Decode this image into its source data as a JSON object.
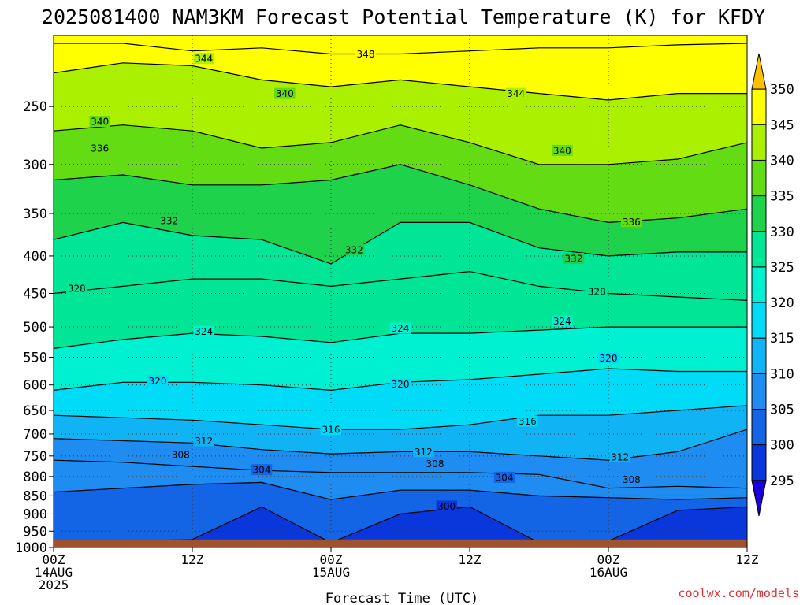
{
  "chart_data": {
    "type": "contour",
    "title": "2025081400 NAM3KM Forecast Potential Temperature (K) for KFDY",
    "xlabel": "Forecast Time (UTC)",
    "ylabel": "",
    "x_unit": "forecast hour",
    "xlim": [
      0,
      60
    ],
    "ylim": [
      1000,
      200
    ],
    "y_scale": "log-pressure",
    "grid": true,
    "x_ticks": [
      {
        "hour": 0,
        "lines": [
          "00Z",
          "14AUG",
          "2025"
        ]
      },
      {
        "hour": 12,
        "lines": [
          "12Z"
        ]
      },
      {
        "hour": 24,
        "lines": [
          "00Z",
          "15AUG"
        ]
      },
      {
        "hour": 36,
        "lines": [
          "12Z"
        ]
      },
      {
        "hour": 48,
        "lines": [
          "00Z",
          "16AUG"
        ]
      },
      {
        "hour": 60,
        "lines": [
          "12Z"
        ]
      }
    ],
    "y_ticks": [
      250,
      300,
      350,
      400,
      450,
      500,
      550,
      600,
      650,
      700,
      750,
      800,
      850,
      900,
      950,
      1000
    ],
    "surface_pressure": 975,
    "surface_color": "#a0522d",
    "colorbar": {
      "levels": [
        295,
        300,
        305,
        310,
        315,
        320,
        325,
        330,
        335,
        340,
        345,
        350
      ],
      "labels": [
        "295",
        "300",
        "305",
        "310",
        "315",
        "320",
        "325",
        "330",
        "335",
        "340",
        "345",
        "350"
      ],
      "colors": [
        "#1a00d8",
        "#0a37dc",
        "#1464e6",
        "#1e8cf0",
        "#10b4f4",
        "#00dcf8",
        "#00f0d2",
        "#00e696",
        "#1ed24b",
        "#64dc14",
        "#aaf000",
        "#ffff00",
        "#ffc000"
      ],
      "position": "right"
    },
    "contour_levels": [
      300,
      304,
      308,
      312,
      316,
      320,
      324,
      328,
      332,
      336,
      340,
      344,
      348
    ],
    "hours": [
      0,
      6,
      12,
      18,
      24,
      30,
      36,
      42,
      48,
      54,
      60
    ],
    "isentropes": [
      {
        "theta": 300,
        "pressure": [
          985,
          980,
          975,
          880,
          985,
          900,
          880,
          985,
          980,
          890,
          880
        ]
      },
      {
        "theta": 304,
        "pressure": [
          840,
          830,
          820,
          815,
          860,
          835,
          835,
          850,
          855,
          860,
          855
        ]
      },
      {
        "theta": 308,
        "pressure": [
          760,
          765,
          775,
          785,
          790,
          790,
          790,
          795,
          830,
          825,
          830
        ]
      },
      {
        "theta": 312,
        "pressure": [
          710,
          715,
          720,
          735,
          745,
          740,
          740,
          750,
          760,
          740,
          690
        ]
      },
      {
        "theta": 316,
        "pressure": [
          660,
          665,
          670,
          680,
          690,
          690,
          680,
          660,
          660,
          650,
          640
        ]
      },
      {
        "theta": 320,
        "pressure": [
          610,
          595,
          595,
          600,
          610,
          595,
          590,
          580,
          570,
          575,
          575
        ]
      },
      {
        "theta": 324,
        "pressure": [
          535,
          520,
          510,
          515,
          525,
          510,
          510,
          505,
          500,
          500,
          500
        ]
      },
      {
        "theta": 328,
        "pressure": [
          450,
          440,
          430,
          430,
          440,
          430,
          420,
          440,
          450,
          455,
          460
        ]
      },
      {
        "theta": 332,
        "pressure": [
          380,
          360,
          375,
          380,
          410,
          360,
          360,
          390,
          400,
          395,
          395
        ]
      },
      {
        "theta": 336,
        "pressure": [
          315,
          310,
          320,
          320,
          315,
          300,
          320,
          345,
          360,
          355,
          345
        ]
      },
      {
        "theta": 340,
        "pressure": [
          270,
          265,
          270,
          285,
          280,
          265,
          280,
          300,
          300,
          295,
          280
        ]
      },
      {
        "theta": 344,
        "pressure": [
          225,
          218,
          220,
          230,
          235,
          230,
          235,
          240,
          245,
          240,
          240
        ]
      },
      {
        "theta": 348,
        "pressure": [
          205,
          205,
          210,
          208,
          212,
          212,
          210,
          208,
          208,
          206,
          205
        ]
      }
    ],
    "contour_labels": [
      {
        "text": "344",
        "hour": 13,
        "p": 215
      },
      {
        "text": "348",
        "hour": 27,
        "p": 212
      },
      {
        "text": "340",
        "hour": 20,
        "p": 240
      },
      {
        "text": "344",
        "hour": 40,
        "p": 240
      },
      {
        "text": "340",
        "hour": 4,
        "p": 262
      },
      {
        "text": "336",
        "hour": 4,
        "p": 285
      },
      {
        "text": "340",
        "hour": 44,
        "p": 287
      },
      {
        "text": "332",
        "hour": 10,
        "p": 358
      },
      {
        "text": "336",
        "hour": 50,
        "p": 359
      },
      {
        "text": "332",
        "hour": 26,
        "p": 392
      },
      {
        "text": "332",
        "hour": 45,
        "p": 403
      },
      {
        "text": "328",
        "hour": 2,
        "p": 443
      },
      {
        "text": "328",
        "hour": 47,
        "p": 447
      },
      {
        "text": "324",
        "hour": 44,
        "p": 491
      },
      {
        "text": "324",
        "hour": 13,
        "p": 507
      },
      {
        "text": "324",
        "hour": 30,
        "p": 502
      },
      {
        "text": "320",
        "hour": 48,
        "p": 551
      },
      {
        "text": "320",
        "hour": 9,
        "p": 592
      },
      {
        "text": "320",
        "hour": 30,
        "p": 598
      },
      {
        "text": "316",
        "hour": 41,
        "p": 672
      },
      {
        "text": "316",
        "hour": 24,
        "p": 690
      },
      {
        "text": "312",
        "hour": 13,
        "p": 715
      },
      {
        "text": "312",
        "hour": 32,
        "p": 740
      },
      {
        "text": "312",
        "hour": 49,
        "p": 752
      },
      {
        "text": "308",
        "hour": 11,
        "p": 747
      },
      {
        "text": "308",
        "hour": 33,
        "p": 768
      },
      {
        "text": "308",
        "hour": 50,
        "p": 807
      },
      {
        "text": "304",
        "hour": 18,
        "p": 783
      },
      {
        "text": "304",
        "hour": 39,
        "p": 802
      },
      {
        "text": "300",
        "hour": 34,
        "p": 878
      }
    ]
  },
  "credit": "coolwx.com/models"
}
